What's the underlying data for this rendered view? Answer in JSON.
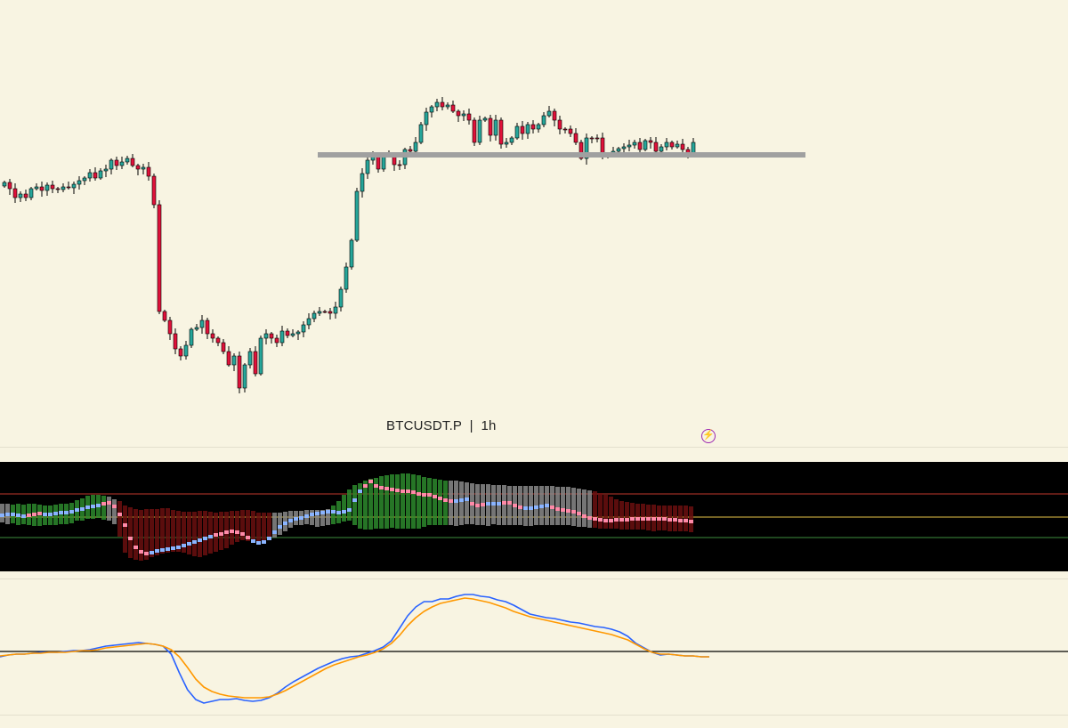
{
  "header": {
    "symbol_label": "BTCUSDT.P  |  1h"
  },
  "colors": {
    "background": "#f8f4e2",
    "candle_up": "#26a69a",
    "candle_down": "#e0113a",
    "support_line": "#a0a0a0",
    "osc_background": "#000000",
    "osc_upper_line": "#c0392b",
    "osc_mid_line": "#e8c547",
    "osc_lower_line": "#3e8e3e",
    "macd_line": "#2962ff",
    "signal_line": "#ff9800",
    "zero_line": "#000000"
  },
  "icons": {
    "status_icon": "flash-icon"
  },
  "chart_data": [
    {
      "type": "candlestick",
      "title": "BTCUSDT.P",
      "timeframe": "1h",
      "support_level": 174,
      "ylim": [
        0,
        500
      ],
      "closes": [
        205,
        212,
        222,
        218,
        222,
        212,
        210,
        214,
        208,
        212,
        213,
        210,
        211,
        207,
        203,
        200,
        194,
        200,
        192,
        190,
        180,
        186,
        182,
        178,
        186,
        190,
        188,
        198,
        230,
        350,
        360,
        375,
        392,
        400,
        388,
        370,
        368,
        360,
        375,
        380,
        385,
        395,
        410,
        400,
        436,
        410,
        395,
        420,
        380,
        375,
        380,
        385,
        372,
        377,
        375,
        373,
        365,
        358,
        352,
        350,
        350,
        352,
        345,
        325,
        300,
        270,
        215,
        195,
        180,
        175,
        190,
        175,
        175,
        185,
        185,
        168,
        170,
        160,
        140,
        126,
        120,
        115,
        120,
        118,
        125,
        130,
        128,
        135,
        160,
        135,
        133,
        152,
        135,
        162,
        160,
        155,
        142,
        150,
        140,
        145,
        140,
        130,
        125,
        135,
        145,
        145,
        150,
        160,
        178,
        155,
        155,
        155,
        175,
        175,
        170,
        167,
        165,
        163,
        160,
        168,
        158,
        160,
        170,
        165,
        160,
        165,
        162,
        168,
        172,
        160
      ]
    },
    {
      "type": "bar",
      "title": "",
      "zero_level": 581,
      "upper_level": 555,
      "lower_level": 604,
      "ylim": [
        519,
        642
      ],
      "bar_bottoms": [
        587,
        589,
        588,
        590,
        589,
        590,
        591,
        591,
        590,
        590,
        590,
        589,
        589,
        588,
        585,
        585,
        583,
        583,
        582,
        584,
        585,
        589,
        603,
        621,
        627,
        629,
        630,
        629,
        626,
        624,
        622,
        621,
        620,
        620,
        621,
        623,
        625,
        626,
        624,
        622,
        620,
        618,
        616,
        612,
        609,
        607,
        608,
        609,
        609,
        608,
        607,
        604,
        601,
        597,
        593,
        590,
        590,
        589,
        590,
        592,
        591,
        590,
        589,
        588,
        586,
        585,
        590,
        594,
        595,
        595,
        594,
        594,
        594,
        593,
        594,
        594,
        594,
        594,
        594,
        592,
        590,
        590,
        590,
        590,
        590,
        591,
        590,
        589,
        589,
        590,
        590,
        591,
        589,
        590,
        590,
        590,
        590,
        590,
        591,
        591,
        590,
        590,
        590,
        590,
        590,
        590,
        590,
        591,
        592,
        592,
        593,
        593,
        594,
        594,
        594,
        594,
        595,
        595,
        595,
        595,
        595,
        596,
        597,
        596,
        596,
        597,
        597,
        597,
        597,
        598
      ],
      "bar_tops": [
        566,
        566,
        567,
        566,
        567,
        566,
        566,
        567,
        568,
        568,
        567,
        566,
        566,
        565,
        562,
        560,
        557,
        556,
        556,
        557,
        558,
        561,
        563,
        568,
        570,
        572,
        573,
        572,
        572,
        572,
        571,
        571,
        573,
        574,
        575,
        575,
        575,
        574,
        574,
        575,
        576,
        575,
        575,
        574,
        574,
        573,
        573,
        574,
        576,
        576,
        576,
        576,
        576,
        575,
        574,
        574,
        574,
        573,
        573,
        573,
        573,
        572,
        568,
        563,
        556,
        550,
        545,
        543,
        540,
        538,
        537,
        535,
        534,
        533,
        533,
        532,
        532,
        533,
        534,
        536,
        537,
        538,
        539,
        540,
        540,
        540,
        541,
        542,
        543,
        544,
        544,
        544,
        545,
        545,
        545,
        546,
        546,
        546,
        546,
        546,
        546,
        546,
        546,
        546,
        547,
        547,
        547,
        548,
        549,
        550,
        551,
        552,
        554,
        556,
        558,
        561,
        563,
        564,
        565,
        566,
        566,
        567,
        567,
        568,
        568,
        568,
        568,
        568,
        568,
        569
      ],
      "bar_colors": [
        "#8a8a8a",
        "#8a8a8a",
        "#2d8a2d",
        "#2d8a2d",
        "#2d8a2d",
        "#2d8a2d",
        "#2d8a2d",
        "#2d8a2d",
        "#2d8a2d",
        "#2d8a2d",
        "#2d8a2d",
        "#2d8a2d",
        "#2d8a2d",
        "#2d8a2d",
        "#2d8a2d",
        "#2d8a2d",
        "#2d8a2d",
        "#2d8a2d",
        "#2d8a2d",
        "#2d8a2d",
        "#8a8a8a",
        "#8a8a8a",
        "#6b0f0f",
        "#6b0f0f",
        "#6b0f0f",
        "#6b0f0f",
        "#6b0f0f",
        "#6b0f0f",
        "#6b0f0f",
        "#6b0f0f",
        "#6b0f0f",
        "#6b0f0f",
        "#6b0f0f",
        "#6b0f0f",
        "#6b0f0f",
        "#6b0f0f",
        "#6b0f0f",
        "#6b0f0f",
        "#6b0f0f",
        "#6b0f0f",
        "#6b0f0f",
        "#6b0f0f",
        "#6b0f0f",
        "#6b0f0f",
        "#6b0f0f",
        "#6b0f0f",
        "#6b0f0f",
        "#6b0f0f",
        "#6b0f0f",
        "#6b0f0f",
        "#6b0f0f",
        "#8a8a8a",
        "#8a8a8a",
        "#8a8a8a",
        "#8a8a8a",
        "#8a8a8a",
        "#8a8a8a",
        "#8a8a8a",
        "#8a8a8a",
        "#8a8a8a",
        "#8a8a8a",
        "#8a8a8a",
        "#2d8a2d",
        "#2d8a2d",
        "#2d8a2d",
        "#2d8a2d",
        "#2d8a2d",
        "#2d8a2d",
        "#2d8a2d",
        "#2d8a2d",
        "#2d8a2d",
        "#2d8a2d",
        "#2d8a2d",
        "#2d8a2d",
        "#2d8a2d",
        "#2d8a2d",
        "#2d8a2d",
        "#2d8a2d",
        "#2d8a2d",
        "#2d8a2d",
        "#2d8a2d",
        "#2d8a2d",
        "#2d8a2d",
        "#2d8a2d",
        "#8a8a8a",
        "#8a8a8a",
        "#8a8a8a",
        "#8a8a8a",
        "#8a8a8a",
        "#8a8a8a",
        "#8a8a8a",
        "#8a8a8a",
        "#8a8a8a",
        "#8a8a8a",
        "#8a8a8a",
        "#8a8a8a",
        "#8a8a8a",
        "#8a8a8a",
        "#8a8a8a",
        "#8a8a8a",
        "#8a8a8a",
        "#8a8a8a",
        "#8a8a8a",
        "#8a8a8a",
        "#8a8a8a",
        "#8a8a8a",
        "#8a8a8a",
        "#8a8a8a",
        "#8a8a8a",
        "#8a8a8a",
        "#8a8a8a",
        "#6b0f0f",
        "#6b0f0f",
        "#6b0f0f",
        "#6b0f0f",
        "#6b0f0f",
        "#6b0f0f",
        "#6b0f0f",
        "#6b0f0f",
        "#6b0f0f",
        "#6b0f0f",
        "#6b0f0f",
        "#6b0f0f",
        "#6b0f0f",
        "#6b0f0f",
        "#6b0f0f",
        "#6b0f0f",
        "#6b0f0f",
        "#6b0f0f",
        "#6b0f0f"
      ],
      "dots": [
        579,
        578,
        578,
        579,
        580,
        579,
        578,
        577,
        578,
        578,
        577,
        576,
        576,
        575,
        573,
        572,
        570,
        569,
        568,
        566,
        565,
        569,
        578,
        590,
        605,
        615,
        620,
        622,
        621,
        619,
        618,
        617,
        616,
        615,
        613,
        611,
        609,
        607,
        605,
        603,
        601,
        600,
        598,
        597,
        598,
        600,
        604,
        608,
        610,
        609,
        605,
        598,
        592,
        588,
        585,
        583,
        582,
        580,
        578,
        577,
        576,
        575,
        575,
        576,
        575,
        573,
        562,
        552,
        546,
        541,
        546,
        548,
        549,
        550,
        551,
        552,
        552,
        553,
        555,
        556,
        556,
        558,
        560,
        562,
        563,
        563,
        562,
        561,
        566,
        568,
        567,
        566,
        566,
        566,
        565,
        565,
        568,
        570,
        571,
        571,
        570,
        569,
        568,
        570,
        572,
        573,
        574,
        575,
        577,
        580,
        582,
        583,
        584,
        585,
        585,
        584,
        584,
        584,
        583,
        583,
        583,
        583,
        583,
        583,
        583,
        584,
        584,
        585,
        585,
        586
      ],
      "dot_colors": [
        "#8ab4ff",
        "#8ab4ff",
        "#8ab4ff",
        "#8ab4ff",
        "#8ab4ff",
        "#ff8aa8",
        "#ff8aa8",
        "#ff8aa8",
        "#8ab4ff",
        "#8ab4ff",
        "#8ab4ff",
        "#8ab4ff",
        "#8ab4ff",
        "#8ab4ff",
        "#8ab4ff",
        "#8ab4ff",
        "#8ab4ff",
        "#8ab4ff",
        "#8ab4ff",
        "#ff8aa8",
        "#ff8aa8",
        "#ff8aa8",
        "#ff8aa8",
        "#ff8aa8",
        "#ff8aa8",
        "#ff8aa8",
        "#ff8aa8",
        "#ff8aa8",
        "#8ab4ff",
        "#8ab4ff",
        "#8ab4ff",
        "#8ab4ff",
        "#8ab4ff",
        "#8ab4ff",
        "#8ab4ff",
        "#8ab4ff",
        "#8ab4ff",
        "#8ab4ff",
        "#8ab4ff",
        "#8ab4ff",
        "#ff8aa8",
        "#ff8aa8",
        "#ff8aa8",
        "#ff8aa8",
        "#ff8aa8",
        "#ff8aa8",
        "#ff8aa8",
        "#8ab4ff",
        "#8ab4ff",
        "#8ab4ff",
        "#8ab4ff",
        "#8ab4ff",
        "#8ab4ff",
        "#8ab4ff",
        "#8ab4ff",
        "#8ab4ff",
        "#8ab4ff",
        "#8ab4ff",
        "#8ab4ff",
        "#8ab4ff",
        "#8ab4ff",
        "#8ab4ff",
        "#8ab4ff",
        "#8ab4ff",
        "#8ab4ff",
        "#8ab4ff",
        "#8ab4ff",
        "#8ab4ff",
        "#ff8aa8",
        "#ff8aa8",
        "#ff8aa8",
        "#ff8aa8",
        "#ff8aa8",
        "#ff8aa8",
        "#ff8aa8",
        "#ff8aa8",
        "#ff8aa8",
        "#ff8aa8",
        "#ff8aa8",
        "#ff8aa8",
        "#ff8aa8",
        "#ff8aa8",
        "#ff8aa8",
        "#ff8aa8",
        "#ff8aa8",
        "#8ab4ff",
        "#8ab4ff",
        "#8ab4ff",
        "#ff8aa8",
        "#ff8aa8",
        "#ff8aa8",
        "#8ab4ff",
        "#8ab4ff",
        "#8ab4ff",
        "#ff8aa8",
        "#ff8aa8",
        "#ff8aa8",
        "#ff8aa8",
        "#8ab4ff",
        "#8ab4ff",
        "#8ab4ff",
        "#8ab4ff",
        "#8ab4ff",
        "#ff8aa8",
        "#ff8aa8",
        "#ff8aa8",
        "#ff8aa8",
        "#ff8aa8",
        "#ff8aa8",
        "#ff8aa8",
        "#ff8aa8",
        "#ff8aa8",
        "#ff8aa8",
        "#ff8aa8",
        "#ff8aa8",
        "#ff8aa8",
        "#ff8aa8",
        "#ff8aa8",
        "#ff8aa8",
        "#ff8aa8",
        "#ff8aa8",
        "#ff8aa8",
        "#ff8aa8",
        "#ff8aa8",
        "#ff8aa8",
        "#ff8aa8",
        "#ff8aa8",
        "#ff8aa8",
        "#ff8aa8",
        "#ff8aa8"
      ]
    },
    {
      "type": "line",
      "title": "",
      "zero_level": 732,
      "ylim": [
        655,
        805
      ],
      "series": [
        {
          "color": "#2962ff",
          "values": [
            738,
            736,
            735,
            735,
            734,
            733,
            733,
            733,
            732,
            731,
            731,
            730,
            728,
            726,
            725,
            724,
            723,
            722,
            723,
            724,
            726,
            735,
            756,
            775,
            786,
            790,
            788,
            786,
            786,
            785,
            787,
            788,
            787,
            784,
            779,
            772,
            766,
            761,
            756,
            751,
            747,
            743,
            740,
            738,
            737,
            734,
            731,
            727,
            720,
            706,
            692,
            682,
            676,
            676,
            673,
            673,
            670,
            668,
            668,
            670,
            671,
            674,
            676,
            680,
            685,
            690,
            692,
            694,
            695,
            697,
            699,
            700,
            702,
            704,
            705,
            707,
            710,
            715,
            723,
            728,
            733,
            736,
            735,
            736,
            737,
            737,
            738,
            738
          ]
        },
        {
          "color": "#ff9800",
          "values": [
            737,
            736,
            735,
            735,
            734,
            734,
            733,
            733,
            733,
            732,
            731,
            731,
            730,
            728,
            727,
            726,
            725,
            724,
            723,
            724,
            726,
            730,
            738,
            750,
            763,
            772,
            777,
            780,
            782,
            783,
            784,
            784,
            784,
            783,
            780,
            776,
            771,
            766,
            761,
            756,
            751,
            747,
            744,
            741,
            738,
            736,
            733,
            729,
            723,
            714,
            703,
            694,
            687,
            682,
            678,
            676,
            674,
            672,
            673,
            675,
            677,
            680,
            683,
            687,
            690,
            693,
            695,
            697,
            699,
            701,
            703,
            705,
            707,
            709,
            711,
            713,
            716,
            719,
            724,
            729,
            733,
            735,
            735,
            736,
            737,
            737,
            738,
            738
          ]
        }
      ]
    }
  ]
}
